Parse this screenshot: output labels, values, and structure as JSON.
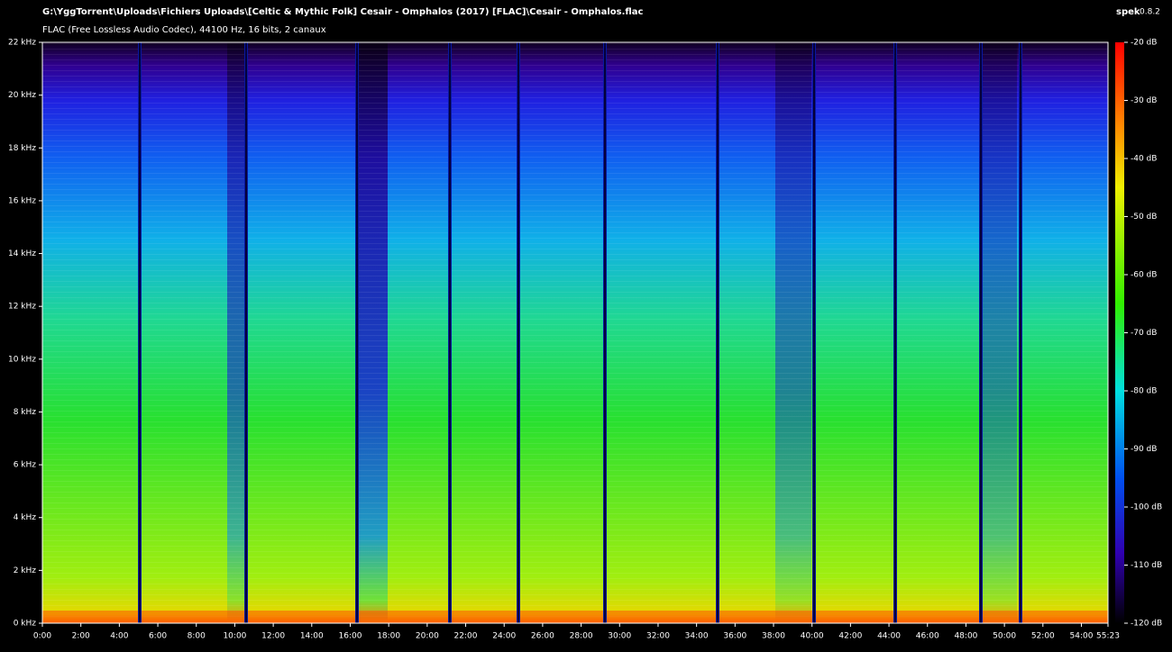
{
  "header": {
    "path": "G:\\YggTorrent\\Uploads\\Fichiers Uploads\\[Celtic & Mythic Folk] Cesair - Omphalos (2017) [FLAC]\\Cesair - Omphalos.flac",
    "info": "FLAC (Free Lossless Audio Codec), 44100 Hz, 16 bits, 2 canaux",
    "app": "spek",
    "version": "0.8.2"
  },
  "frequency_axis": {
    "ticks": [
      "0 kHz",
      "2 kHz",
      "4 kHz",
      "6 kHz",
      "8 kHz",
      "10 kHz",
      "12 kHz",
      "14 kHz",
      "16 kHz",
      "18 kHz",
      "20 kHz",
      "22 kHz"
    ]
  },
  "time_axis": {
    "ticks": [
      "0:00",
      "2:00",
      "4:00",
      "6:00",
      "8:00",
      "10:00",
      "12:00",
      "14:00",
      "16:00",
      "18:00",
      "20:00",
      "22:00",
      "24:00",
      "26:00",
      "28:00",
      "30:00",
      "32:00",
      "34:00",
      "36:00",
      "38:00",
      "40:00",
      "42:00",
      "44:00",
      "46:00",
      "48:00",
      "50:00",
      "52:00",
      "54:00",
      "55:23"
    ]
  },
  "level_scale": {
    "ticks": [
      "-20 dB",
      "-30 dB",
      "-40 dB",
      "-50 dB",
      "-60 dB",
      "-70 dB",
      "-80 dB",
      "-90 dB",
      "-100 dB",
      "-110 dB",
      "-120 dB"
    ]
  }
}
